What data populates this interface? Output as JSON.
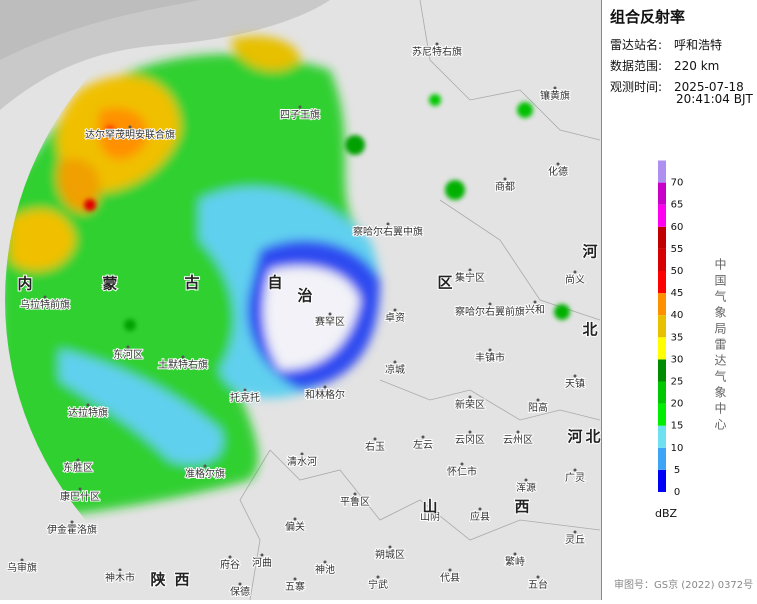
{
  "header": {
    "title": "组合反射率"
  },
  "info": [
    {
      "label": "雷达站名:",
      "value": "呼和浩特"
    },
    {
      "label": "数据范围:",
      "value": "220 km"
    },
    {
      "label": "观测时间:",
      "value": "2025-07-18"
    }
  ],
  "time_line2": "20:41:04 BJT",
  "legend": {
    "unit": "dBZ",
    "items": [
      {
        "value": 0,
        "color": "#0000f6"
      },
      {
        "value": 5,
        "color": "#3ea4f5"
      },
      {
        "value": 10,
        "color": "#6fe0f0"
      },
      {
        "value": 15,
        "color": "#00ee00"
      },
      {
        "value": 20,
        "color": "#00c800"
      },
      {
        "value": 25,
        "color": "#008c00"
      },
      {
        "value": 30,
        "color": "#ffff00"
      },
      {
        "value": 35,
        "color": "#e7c000"
      },
      {
        "value": 40,
        "color": "#ff9000"
      },
      {
        "value": 45,
        "color": "#ff0000"
      },
      {
        "value": 50,
        "color": "#d60000"
      },
      {
        "value": 55,
        "color": "#c00000"
      },
      {
        "value": 60,
        "color": "#ff00f0"
      },
      {
        "value": 65,
        "color": "#c800c8"
      },
      {
        "value": 70,
        "color": "#ad90f0"
      }
    ]
  },
  "side_text": "中国气象局雷达气象中心",
  "footer": "审图号：GS京 (2022) 0372号",
  "map": {
    "labels": [
      "苏尼特右旗",
      "镶黄旗",
      "四子王旗",
      "达尔罕茂明安联合旗",
      "商都",
      "化德",
      "察哈尔右翼中旗",
      "集宁区",
      "察哈尔右翼前旗",
      "兴和",
      "卓资",
      "凉城",
      "丰镇市",
      "新荣区",
      "阳高",
      "天镇",
      "云冈区",
      "云州区",
      "左云",
      "怀仁市",
      "浑源",
      "广灵",
      "应县",
      "灵丘",
      "繁峙",
      "朔城区",
      "平鲁区",
      "右玉",
      "山阴",
      "代县",
      "宁武",
      "五寨",
      "神池",
      "偏关",
      "河曲",
      "府谷",
      "保德",
      "清水河",
      "和林格尔",
      "托克托",
      "准格尔旗",
      "达拉特旗",
      "东胜区",
      "康巴什区",
      "伊金霍洛旗",
      "乌审旗",
      "神木市",
      "土默特右旗",
      "东河区",
      "乌拉特前旗",
      "赛罕区",
      "尚义",
      "五台"
    ],
    "big_labels": [
      "内",
      "蒙",
      "古",
      "自",
      "治",
      "区",
      "陕",
      "西",
      "山",
      "西",
      "河",
      "北",
      "河",
      "北"
    ]
  }
}
